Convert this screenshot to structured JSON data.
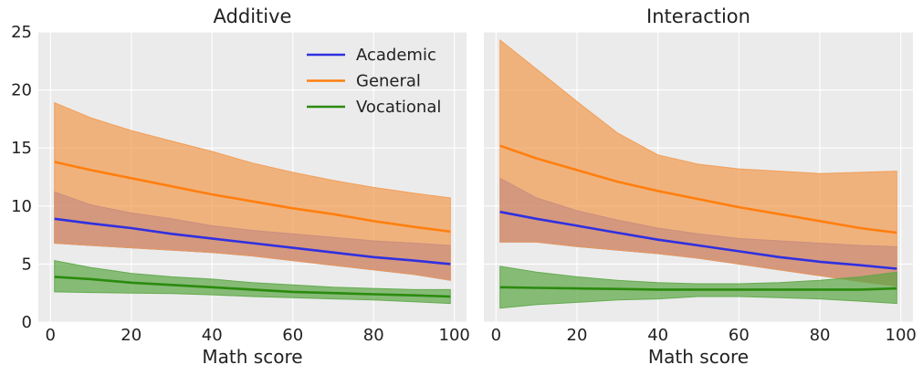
{
  "chart_data": [
    {
      "type": "line",
      "title": "Additive",
      "xlabel": "Math score",
      "ylabel": "",
      "xlim": [
        -3,
        103
      ],
      "ylim": [
        0,
        25
      ],
      "xticks": [
        "0",
        "20",
        "40",
        "60",
        "80",
        "100"
      ],
      "yticks": [
        "0",
        "5",
        "10",
        "15",
        "20",
        "25"
      ],
      "grid": true,
      "legend": "top-right",
      "series": [
        {
          "name": "Academic",
          "color": "#3030E0",
          "band_color": "#6570F0",
          "x": [
            1,
            10,
            20,
            30,
            40,
            50,
            60,
            70,
            80,
            90,
            99
          ],
          "y": [
            8.9,
            8.5,
            8.1,
            7.6,
            7.2,
            6.8,
            6.4,
            6.0,
            5.6,
            5.3,
            5.0
          ],
          "lower": [
            6.8,
            6.6,
            6.4,
            6.2,
            6.0,
            5.7,
            5.3,
            4.9,
            4.5,
            4.1,
            3.6
          ],
          "upper": [
            11.2,
            10.1,
            9.4,
            8.9,
            8.3,
            7.9,
            7.6,
            7.3,
            7.0,
            6.8,
            6.6
          ]
        },
        {
          "name": "General",
          "color": "#FF7F0E",
          "band_color": "#F29A4F",
          "x": [
            1,
            10,
            20,
            30,
            40,
            50,
            60,
            70,
            80,
            90,
            99
          ],
          "y": [
            13.8,
            13.1,
            12.4,
            11.7,
            11.0,
            10.4,
            9.8,
            9.3,
            8.7,
            8.2,
            7.8
          ],
          "lower": [
            6.8,
            6.6,
            6.4,
            6.2,
            6.0,
            5.7,
            5.3,
            4.9,
            4.5,
            4.1,
            3.6
          ],
          "upper": [
            18.9,
            17.6,
            16.5,
            15.6,
            14.7,
            13.7,
            12.9,
            12.2,
            11.6,
            11.1,
            10.7
          ]
        },
        {
          "name": "Vocational",
          "color": "#2B8A0E",
          "band_color": "#5BA745",
          "x": [
            1,
            10,
            20,
            30,
            40,
            50,
            60,
            70,
            80,
            90,
            99
          ],
          "y": [
            3.9,
            3.7,
            3.4,
            3.2,
            3.0,
            2.8,
            2.6,
            2.5,
            2.4,
            2.3,
            2.2
          ],
          "lower": [
            2.6,
            2.55,
            2.5,
            2.45,
            2.35,
            2.2,
            2.1,
            2.0,
            1.9,
            1.75,
            1.6
          ],
          "upper": [
            5.3,
            4.7,
            4.2,
            3.9,
            3.7,
            3.4,
            3.2,
            3.0,
            2.9,
            2.8,
            2.8
          ]
        }
      ]
    },
    {
      "type": "line",
      "title": "Interaction",
      "xlabel": "Math score",
      "ylabel": "",
      "xlim": [
        -3,
        103
      ],
      "ylim": [
        0,
        25
      ],
      "xticks": [
        "0",
        "20",
        "40",
        "60",
        "80",
        "100"
      ],
      "yticks": [],
      "grid": true,
      "legend": "none",
      "series": [
        {
          "name": "Academic",
          "color": "#3030E0",
          "band_color": "#6570F0",
          "x": [
            1,
            10,
            20,
            30,
            40,
            50,
            60,
            70,
            80,
            90,
            99
          ],
          "y": [
            9.5,
            8.9,
            8.3,
            7.7,
            7.1,
            6.6,
            6.1,
            5.6,
            5.2,
            4.9,
            4.6
          ],
          "lower": [
            6.9,
            6.9,
            6.5,
            6.2,
            5.9,
            5.5,
            5.0,
            4.5,
            4.0,
            3.5,
            3.1
          ],
          "upper": [
            12.4,
            10.7,
            9.6,
            8.8,
            8.1,
            7.6,
            7.2,
            7.0,
            6.8,
            6.6,
            6.5
          ]
        },
        {
          "name": "General",
          "color": "#FF7F0E",
          "band_color": "#F29A4F",
          "x": [
            1,
            10,
            20,
            30,
            40,
            50,
            60,
            70,
            80,
            90,
            99
          ],
          "y": [
            15.2,
            14.1,
            13.1,
            12.1,
            11.3,
            10.6,
            9.9,
            9.3,
            8.7,
            8.1,
            7.7
          ],
          "lower": [
            6.9,
            6.9,
            6.5,
            6.2,
            5.9,
            5.5,
            5.0,
            4.5,
            4.0,
            3.5,
            3.1
          ],
          "upper": [
            24.3,
            21.8,
            19.0,
            16.3,
            14.4,
            13.6,
            13.2,
            13.0,
            12.8,
            12.9,
            13.0
          ]
        },
        {
          "name": "Vocational",
          "color": "#2B8A0E",
          "band_color": "#5BA745",
          "x": [
            1,
            10,
            20,
            30,
            40,
            50,
            60,
            70,
            80,
            90,
            99
          ],
          "y": [
            3.0,
            2.95,
            2.9,
            2.85,
            2.8,
            2.8,
            2.8,
            2.8,
            2.8,
            2.8,
            2.9
          ],
          "lower": [
            1.2,
            1.5,
            1.7,
            1.9,
            2.0,
            2.2,
            2.2,
            2.1,
            2.0,
            1.8,
            1.6
          ],
          "upper": [
            4.8,
            4.3,
            3.9,
            3.6,
            3.4,
            3.3,
            3.3,
            3.4,
            3.6,
            3.9,
            4.3
          ]
        }
      ]
    }
  ]
}
